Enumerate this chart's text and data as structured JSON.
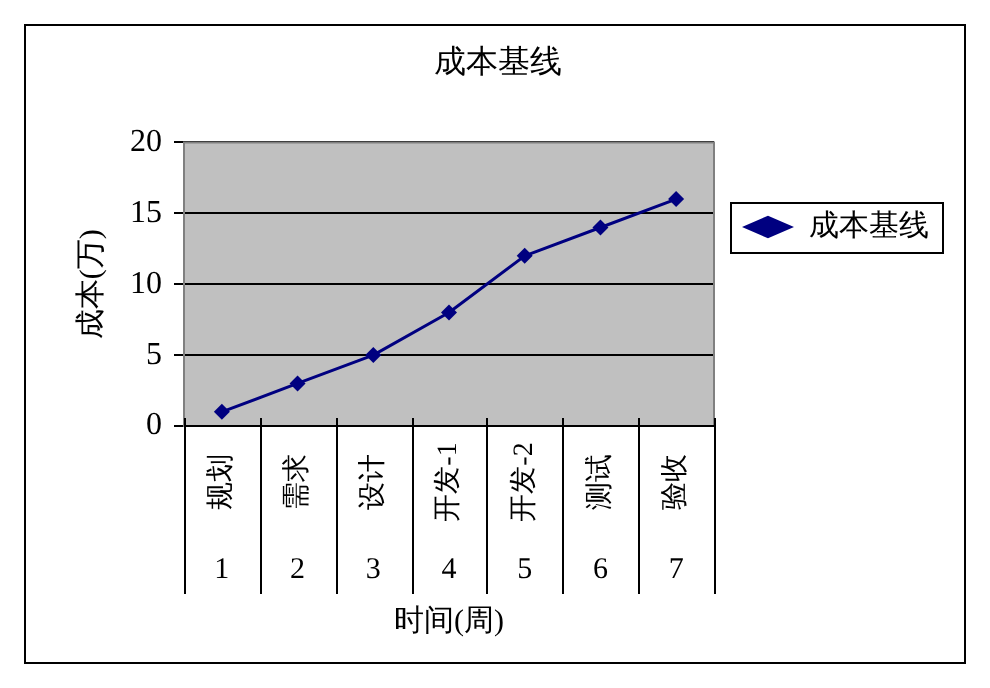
{
  "chart_data": {
    "type": "line",
    "title": "成本基线",
    "xlabel": "时间(周)",
    "ylabel": "成本(万)",
    "categories": [
      "规划\n1",
      "需求\n2",
      "设计\n3",
      "开发-1\n4",
      "开发-2\n5",
      "测试\n6",
      "验收\n7"
    ],
    "series": [
      {
        "name": "成本基线",
        "color": "#000080",
        "values": [
          1,
          3,
          5,
          8,
          12,
          14,
          16
        ]
      }
    ],
    "ylim": [
      0,
      20
    ],
    "yticks": [
      0,
      5,
      10,
      15,
      20
    ],
    "grid": "y",
    "legend": "right",
    "marker": "diamond",
    "line_style": "solid"
  }
}
